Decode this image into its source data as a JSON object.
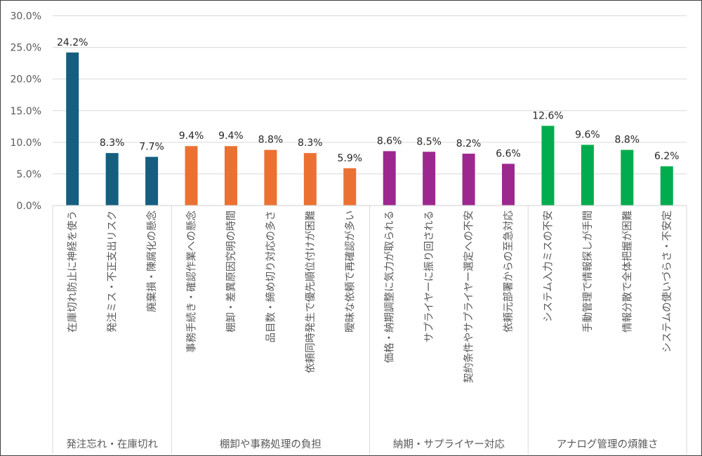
{
  "chart_data": {
    "type": "bar",
    "title": "",
    "xlabel": "",
    "ylabel": "",
    "ylim": [
      0,
      30
    ],
    "y_ticks": [
      "0.0%",
      "5.0%",
      "10.0%",
      "15.0%",
      "20.0%",
      "25.0%",
      "30.0%"
    ],
    "y_tick_values": [
      0,
      5,
      10,
      15,
      20,
      25,
      30
    ],
    "grid": true,
    "legend": "none",
    "groups": [
      {
        "name": "発注忘れ・在庫切れ",
        "color": "#155E80",
        "categories": [
          "在庫切れ防止に神経を使う",
          "発注ミス・不正支出リスク",
          "廃棄損・陳腐化の懸念"
        ],
        "values": [
          24.2,
          8.3,
          7.7
        ],
        "labels": [
          "24.2%",
          "8.3%",
          "7.7%"
        ]
      },
      {
        "name": "棚卸や事務処理の負担",
        "color": "#EB7133",
        "categories": [
          "事務手続き・確認作業への懸念",
          "棚卸・差異原因究明の時間",
          "品目数・締め切り対応の多さ",
          "依頼同時発生で優先順位付けが困難",
          "曖昧な依頼で再確認が多い"
        ],
        "values": [
          9.4,
          9.4,
          8.8,
          8.3,
          5.9
        ],
        "labels": [
          "9.4%",
          "9.4%",
          "8.8%",
          "8.3%",
          "5.9%"
        ]
      },
      {
        "name": "納期・サプライヤー対応",
        "color": "#9C288F",
        "categories": [
          "価格・納期調整に気力が取られる",
          "サプライヤーに振り回される",
          "契約条件やサプライヤー選定への不安",
          "依頼元部署からの至急対応"
        ],
        "values": [
          8.6,
          8.5,
          8.2,
          6.6
        ],
        "labels": [
          "8.6%",
          "8.5%",
          "8.2%",
          "6.6%"
        ]
      },
      {
        "name": "アナログ管理の煩雑さ",
        "color": "#00AC4D",
        "categories": [
          "システム入力ミスの不安",
          "手動管理で情報探しが手間",
          "情報分散で全体把握が困難",
          "システムの使いづらさ・不安定"
        ],
        "values": [
          12.6,
          9.6,
          8.8,
          6.2
        ],
        "labels": [
          "12.6%",
          "9.6%",
          "8.8%",
          "6.2%"
        ]
      }
    ]
  }
}
